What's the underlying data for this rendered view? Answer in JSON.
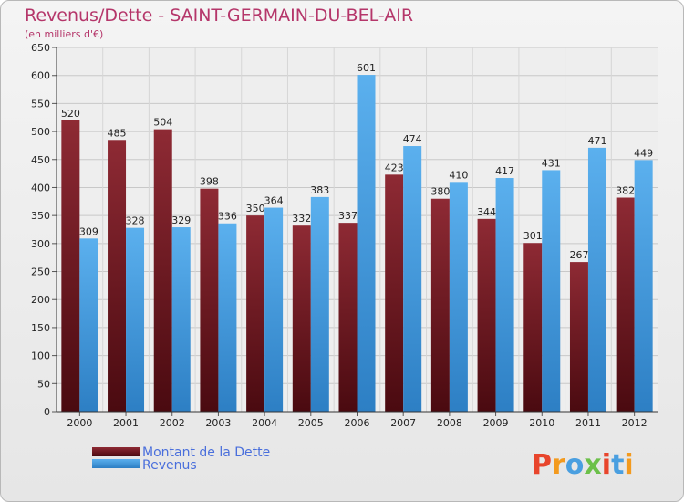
{
  "chart_data": {
    "type": "bar",
    "title": "Revenus/Dette - SAINT-GERMAIN-DU-BEL-AIR",
    "subtitle": "(en milliers d'€)",
    "categories": [
      "2000",
      "2001",
      "2002",
      "2003",
      "2004",
      "2005",
      "2006",
      "2007",
      "2008",
      "2009",
      "2010",
      "2011",
      "2012"
    ],
    "series": [
      {
        "name": "Montant de la Dette",
        "color": "#7a1a22",
        "values": [
          520,
          485,
          504,
          398,
          350,
          332,
          337,
          423,
          380,
          344,
          301,
          267,
          382
        ]
      },
      {
        "name": "Revenus",
        "color": "#4a9fe0",
        "values": [
          309,
          328,
          329,
          336,
          364,
          383,
          601,
          474,
          410,
          417,
          431,
          471,
          449
        ]
      }
    ],
    "ylim": [
      0,
      650
    ],
    "yticks": [
      0,
      50,
      100,
      150,
      200,
      250,
      300,
      350,
      400,
      450,
      500,
      550,
      600,
      650
    ],
    "grid": true,
    "legend": "bottom-left"
  },
  "brand": {
    "logo_text": "Proxiti",
    "colors": [
      "#e8452c",
      "#f39a1e",
      "#4a9fe0",
      "#6cc04a",
      "#e8452c",
      "#4a9fe0",
      "#f39a1e"
    ]
  }
}
